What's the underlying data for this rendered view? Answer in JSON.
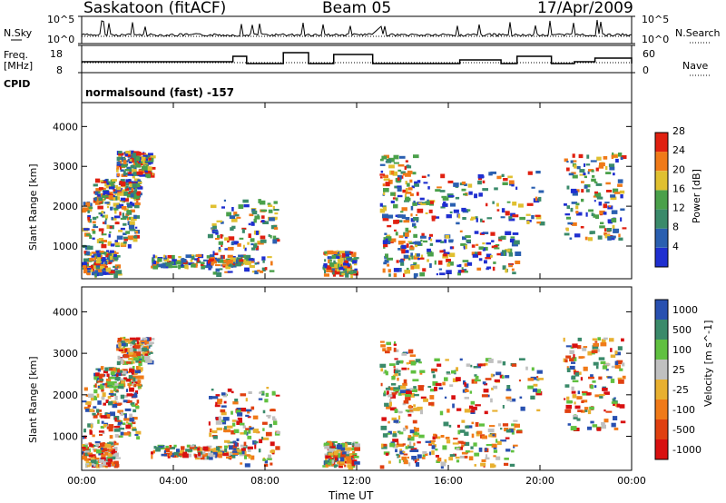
{
  "header": {
    "station": "Saskatoon (fitACF)",
    "beam": "Beam 05",
    "date": "17/Apr/2009"
  },
  "top_panels": {
    "nsky_label": "N.Sky",
    "nsearch_label": "N.Search",
    "nsky_ticks": [
      "10^5",
      "10^0"
    ],
    "nsearch_ticks": [
      "10^5",
      "10^0"
    ],
    "freq_label_line1": "Freq.",
    "freq_label_line2": "[MHz]",
    "freq_ticks": [
      "18",
      "8"
    ],
    "nave_label": "Nave",
    "nave_ticks": [
      "60",
      "0"
    ],
    "cpid_label": "CPID",
    "cpid_value": "normalsound (fast) -157"
  },
  "chart_data": [
    {
      "type": "heatmap",
      "name": "power",
      "ylabel": "Slant Range [km]",
      "colorbar_label": "Power [dB]",
      "yticks": [
        "1000",
        "2000",
        "3000",
        "4000"
      ],
      "ylim": [
        180,
        4600
      ],
      "colorbar_ticks": [
        "4",
        "8",
        "12",
        "16",
        "20",
        "24",
        "28"
      ],
      "colors": [
        "#1f2fd0",
        "#2a5fb0",
        "#3a8a6a",
        "#4aa04a",
        "#e0c030",
        "#f07a18",
        "#e02010"
      ],
      "xticks": [
        "00:00",
        "04:00",
        "08:00",
        "12:00",
        "16:00",
        "20:00",
        "00:00"
      ]
    },
    {
      "type": "heatmap",
      "name": "velocity",
      "ylabel": "Slant Range [km]",
      "colorbar_label": "Velocity [m s^-1]",
      "yticks": [
        "1000",
        "2000",
        "3000",
        "4000"
      ],
      "ylim": [
        180,
        4600
      ],
      "colorbar_ticks": [
        "1000",
        "500",
        "100",
        "25",
        "-25",
        "-100",
        "-500",
        "-1000"
      ],
      "colors": [
        "#2850b0",
        "#3a8a6a",
        "#60c040",
        "#c0c0c0",
        "#e8b030",
        "#f07a18",
        "#e04010",
        "#d81010"
      ],
      "xticks": [
        "00:00",
        "04:00",
        "08:00",
        "12:00",
        "16:00",
        "20:00",
        "00:00"
      ],
      "xlabel": "Time UT"
    }
  ]
}
